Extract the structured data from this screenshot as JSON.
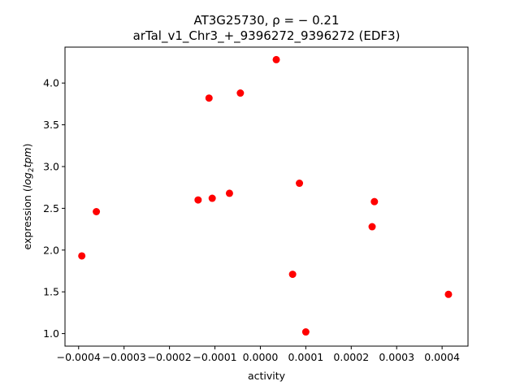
{
  "chart_data": {
    "type": "scatter",
    "title_line1": "AT3G25730, ρ = − 0.21",
    "title_line2": "arTal_v1_Chr3_+_9396272_9396272 (EDF3)",
    "xlabel": "activity",
    "ylabel_prefix": "expression (",
    "ylabel_main": "log",
    "ylabel_sub": "2",
    "ylabel_tail": "tpm",
    "ylabel_suffix": ")",
    "xlim": [
      -0.00043,
      0.000457
    ],
    "ylim": [
      0.85,
      4.43
    ],
    "xticks": [
      {
        "value": -0.0004,
        "label": "−0.0004"
      },
      {
        "value": -0.0003,
        "label": "−0.0003"
      },
      {
        "value": -0.0002,
        "label": "−0.0002"
      },
      {
        "value": -0.0001,
        "label": "−0.0001"
      },
      {
        "value": 0.0,
        "label": "0.0000"
      },
      {
        "value": 0.0001,
        "label": "0.0001"
      },
      {
        "value": 0.0002,
        "label": "0.0002"
      },
      {
        "value": 0.0003,
        "label": "0.0003"
      },
      {
        "value": 0.0004,
        "label": "0.0004"
      }
    ],
    "yticks": [
      {
        "value": 1.0,
        "label": "1.0"
      },
      {
        "value": 1.5,
        "label": "1.5"
      },
      {
        "value": 2.0,
        "label": "2.0"
      },
      {
        "value": 2.5,
        "label": "2.5"
      },
      {
        "value": 3.0,
        "label": "3.0"
      },
      {
        "value": 3.5,
        "label": "3.5"
      },
      {
        "value": 4.0,
        "label": "4.0"
      }
    ],
    "grid": false,
    "marker_color": "#ff0000",
    "points": [
      {
        "x": -0.000393,
        "y": 1.93
      },
      {
        "x": -0.000361,
        "y": 2.46
      },
      {
        "x": -0.000137,
        "y": 2.6
      },
      {
        "x": -0.000113,
        "y": 3.82
      },
      {
        "x": -0.000106,
        "y": 2.62
      },
      {
        "x": -6.8e-05,
        "y": 2.68
      },
      {
        "x": -4.4e-05,
        "y": 3.88
      },
      {
        "x": 3.5e-05,
        "y": 4.28
      },
      {
        "x": 7.1e-05,
        "y": 1.71
      },
      {
        "x": 8.6e-05,
        "y": 2.8
      },
      {
        "x": 0.0001,
        "y": 1.02
      },
      {
        "x": 0.000246,
        "y": 2.28
      },
      {
        "x": 0.000251,
        "y": 2.58
      },
      {
        "x": 0.000414,
        "y": 1.47
      }
    ]
  }
}
